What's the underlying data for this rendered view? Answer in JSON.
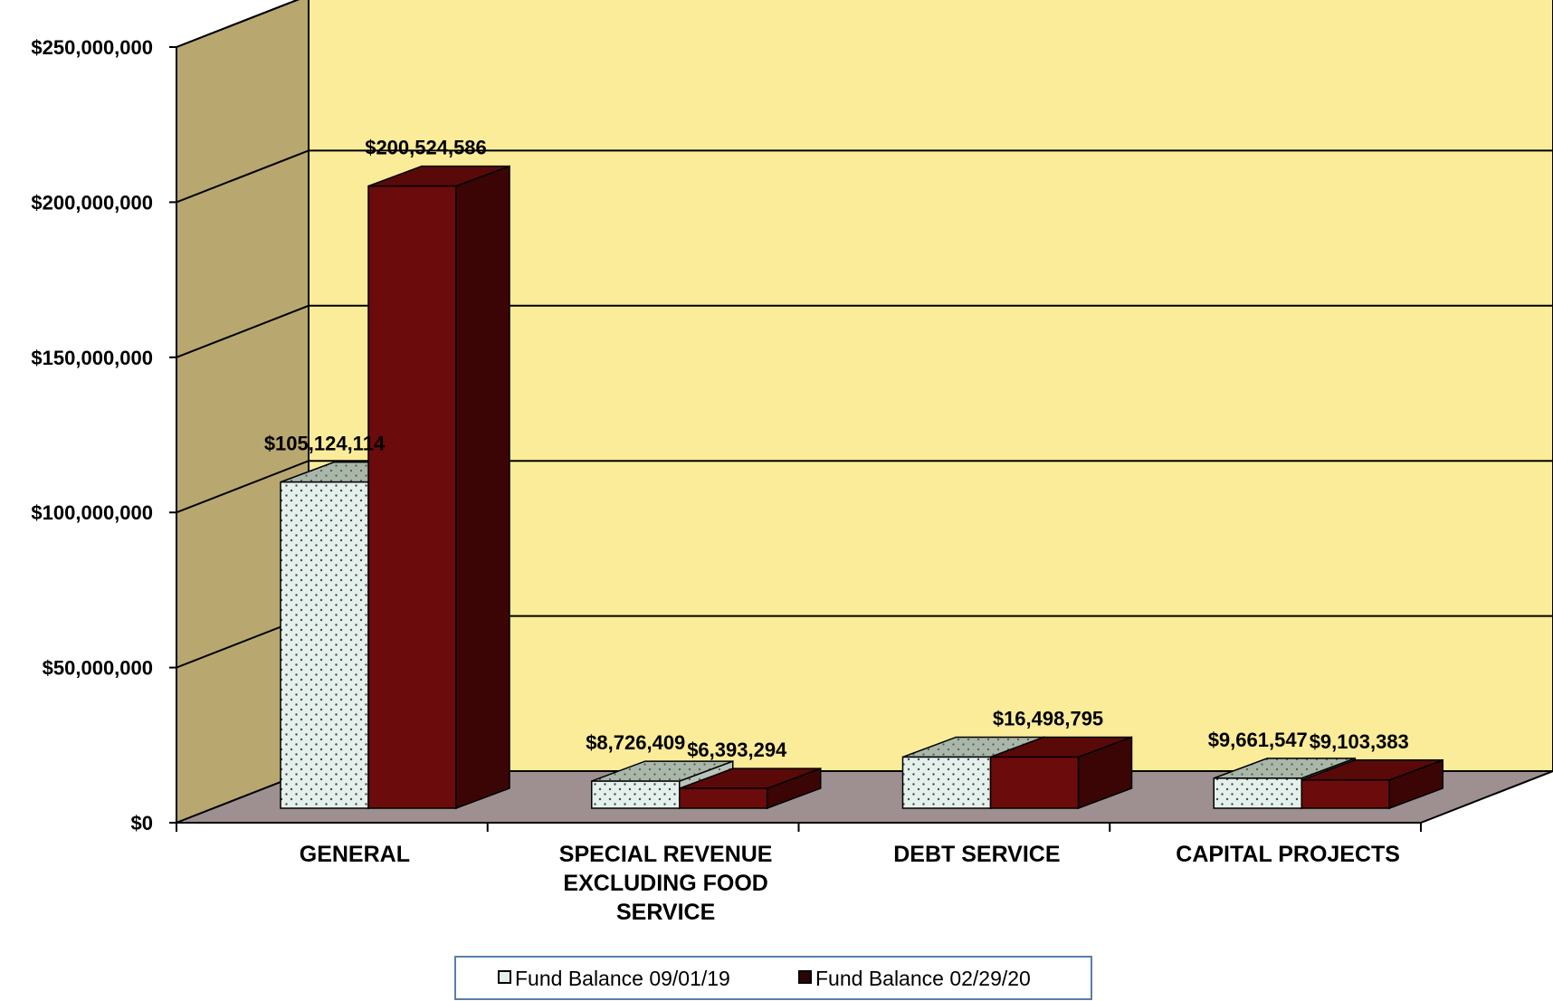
{
  "chart_data": {
    "type": "bar",
    "style": "3d-clustered-column",
    "categories": [
      [
        "GENERAL"
      ],
      [
        "SPECIAL REVENUE",
        "EXCLUDING FOOD",
        "SERVICE"
      ],
      [
        "DEBT SERVICE"
      ],
      [
        "CAPITAL PROJECTS"
      ]
    ],
    "series": [
      {
        "name": "Fund Balance 09/01/19",
        "values": [
          105124114,
          8726409,
          16498795,
          9661547
        ],
        "labels": [
          "$105,124,114",
          "$8,726,409",
          "",
          "$9,661,547"
        ],
        "color": "#e4f0ec",
        "pattern": "dotted"
      },
      {
        "name": "Fund Balance 02/29/20",
        "values": [
          200524586,
          6393294,
          16498795,
          9103383
        ],
        "labels": [
          "$200,524,586",
          "$6,393,294",
          "$16,498,795",
          "$9,103,383"
        ],
        "color": "#6b0b0b"
      }
    ],
    "yticks": [
      {
        "value": 0,
        "label": "$0"
      },
      {
        "value": 50000000,
        "label": "$50,000,000"
      },
      {
        "value": 100000000,
        "label": "$100,000,000"
      },
      {
        "value": 150000000,
        "label": "$150,000,000"
      },
      {
        "value": 200000000,
        "label": "$200,000,000"
      },
      {
        "value": 250000000,
        "label": "$250,000,000"
      }
    ],
    "ylim": [
      0,
      250000000
    ],
    "title": "",
    "xlabel": "",
    "ylabel": "",
    "grid": true,
    "legend": "bottom-center",
    "colors": {
      "back_wall": "#fbec9a",
      "side_wall": "#b8a870",
      "floor": "#9e9090",
      "frame": "#000000",
      "legend_border": "#5a7fa8"
    }
  }
}
